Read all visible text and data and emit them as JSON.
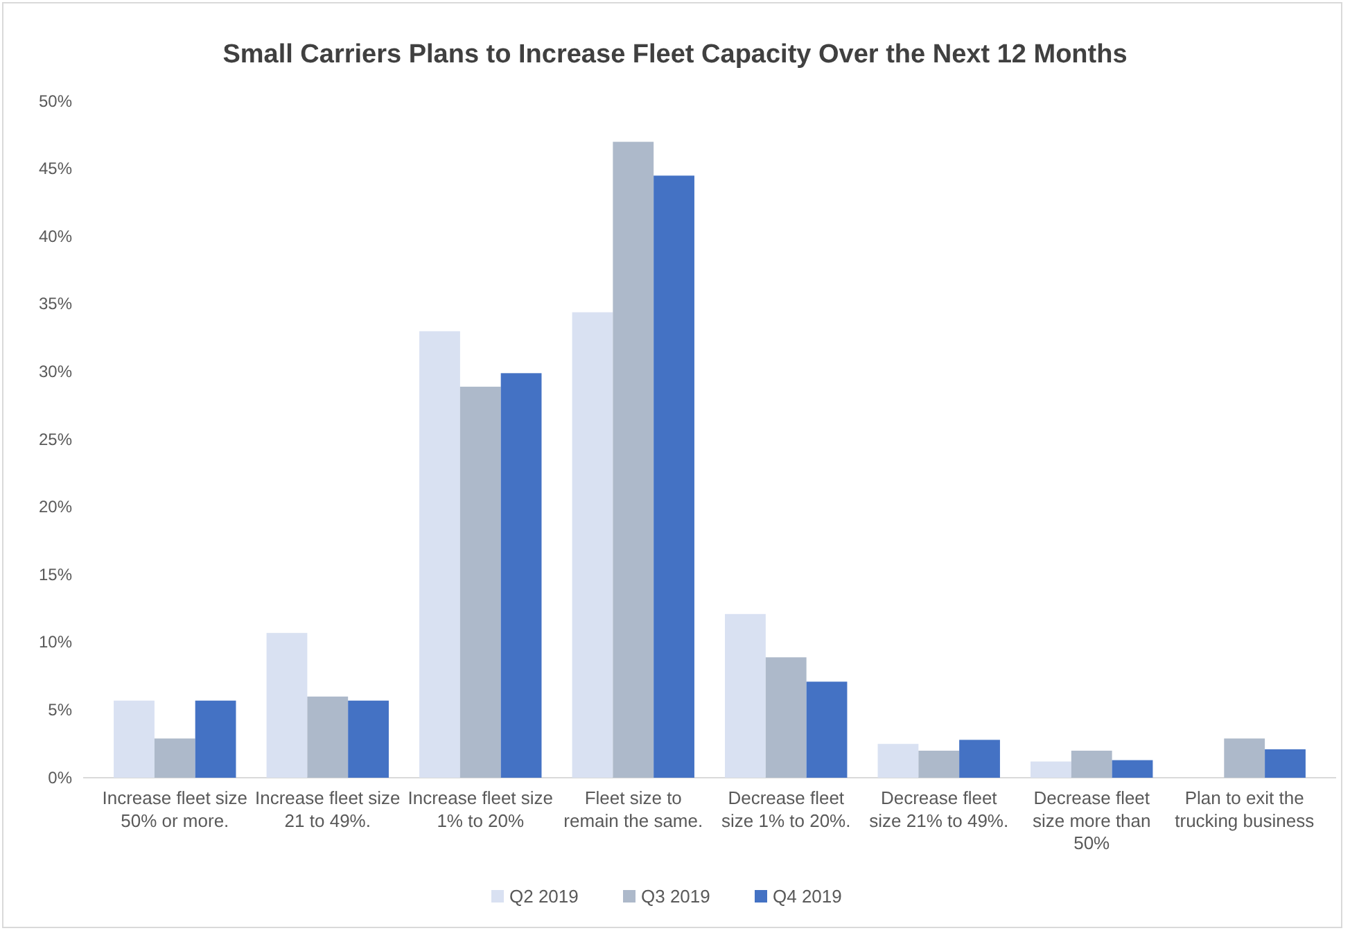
{
  "chart_data": {
    "type": "bar",
    "title": "Small Carriers Plans to Increase Fleet Capacity Over the Next 12 Months",
    "categories": [
      "Increase fleet size 50% or more.",
      "Increase fleet size 21 to 49%.",
      "Increase fleet size 1% to 20%",
      "Fleet size to remain the same.",
      "Decrease fleet size 1% to 20%.",
      "Decrease fleet size 21% to 49%.",
      "Decrease fleet size more than 50%",
      "Plan to exit the trucking business"
    ],
    "series": [
      {
        "name": "Q2 2019",
        "color": "#d9e1f2",
        "values": [
          5.7,
          10.7,
          33.0,
          34.4,
          12.1,
          2.5,
          1.2,
          0
        ]
      },
      {
        "name": "Q3 2019",
        "color": "#adb9ca",
        "values": [
          2.9,
          6.0,
          28.9,
          47.0,
          8.9,
          2.0,
          2.0,
          2.9
        ]
      },
      {
        "name": "Q4 2019",
        "color": "#4472c4",
        "values": [
          5.7,
          5.7,
          29.9,
          44.5,
          7.1,
          2.8,
          1.3,
          2.1
        ]
      }
    ],
    "ylim": [
      0,
      50
    ],
    "yticks": [
      {
        "value": 0,
        "label": "0%"
      },
      {
        "value": 5,
        "label": "5%"
      },
      {
        "value": 10,
        "label": "10%"
      },
      {
        "value": 15,
        "label": "15%"
      },
      {
        "value": 20,
        "label": "20%"
      },
      {
        "value": 25,
        "label": "25%"
      },
      {
        "value": 30,
        "label": "30%"
      },
      {
        "value": 35,
        "label": "35%"
      },
      {
        "value": 40,
        "label": "40%"
      },
      {
        "value": 45,
        "label": "45%"
      },
      {
        "value": 50,
        "label": "50%"
      }
    ],
    "grid": false,
    "legend": "bottom"
  }
}
